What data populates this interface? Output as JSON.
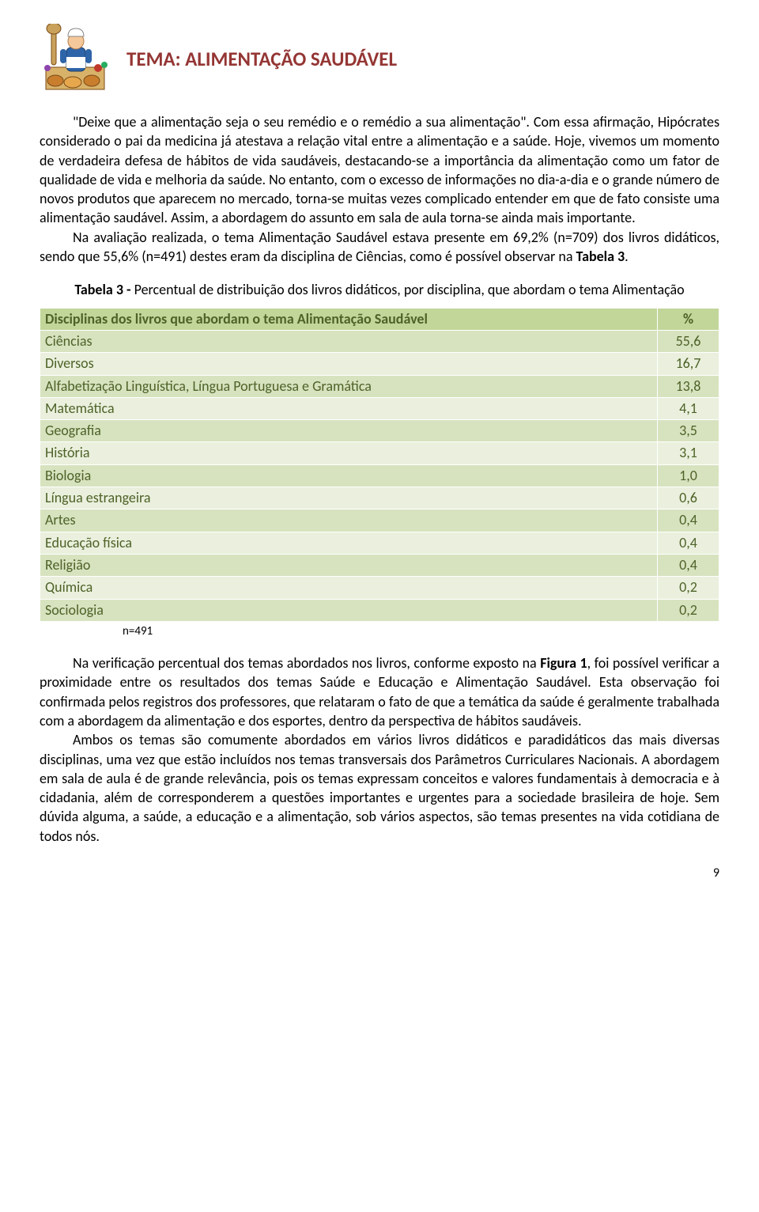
{
  "header": {
    "title": "TEMA: ALIMENTAÇÃO SAUDÁVEL"
  },
  "body": {
    "p1a": "\"Deixe que a alimentação seja o seu remédio e o remédio a sua alimentação\". Com essa afirmação, Hipócrates considerado o pai da medicina já atestava a relação vital entre a alimentação e a saúde. Hoje, vivemos um momento de verdadeira defesa de hábitos de vida saudáveis, destacando-se a importância da alimentação como um fator de qualidade de vida e melhoria da saúde. No entanto, com o excesso de informações no dia-a-dia e o grande número de novos produtos que aparecem no mercado, torna-se muitas vezes complicado entender em que de fato consiste uma alimentação saudável. Assim, a abordagem do assunto em sala de aula torna-se ainda mais importante.",
    "p2a": "Na avaliação realizada, o tema Alimentação Saudável estava presente em 69,2% (n=709) dos livros didáticos, sendo que 55,6% (n=491) destes eram da disciplina de Ciências, como é possível observar na ",
    "p2b": "Tabela 3",
    "p2c": ".",
    "p3a": "Na verificação percentual dos temas abordados nos livros, conforme exposto na ",
    "p3b": "Figura 1",
    "p3c": ", foi possível verificar a proximidade entre os resultados dos temas Saúde e Educação e Alimentação Saudável. Esta observação foi confirmada pelos registros dos professores, que relataram o fato de que a temática da saúde é geralmente trabalhada com a abordagem da alimentação e dos esportes, dentro da perspectiva de hábitos saudáveis.",
    "p4": "Ambos os temas são comumente abordados em vários livros didáticos e paradidáticos das mais diversas disciplinas, uma vez que estão incluídos nos temas transversais dos Parâmetros Curriculares Nacionais. A abordagem em sala de aula é de grande relevância, pois os temas expressam conceitos e valores fundamentais à democracia e à cidadania, além de corresponderem a questões importantes e urgentes para a sociedade brasileira de hoje. Sem dúvida alguma, a saúde, a educação e a alimentação, sob vários aspectos, são temas presentes na vida cotidiana de todos nós."
  },
  "table": {
    "caption_prefix": "Tabela 3 - ",
    "caption_rest": "Percentual de distribuição dos livros didáticos, por disciplina, que abordam o tema Alimentação",
    "header_label": "Disciplinas dos livros que abordam o tema Alimentação Saudável",
    "header_pct": "%",
    "rows": [
      {
        "label": "Ciências",
        "pct": "55,6"
      },
      {
        "label": "Diversos",
        "pct": "16,7"
      },
      {
        "label": "Alfabetização Linguística, Língua Portuguesa e Gramática",
        "pct": "13,8"
      },
      {
        "label": "Matemática",
        "pct": "4,1"
      },
      {
        "label": "Geografia",
        "pct": "3,5"
      },
      {
        "label": "História",
        "pct": "3,1"
      },
      {
        "label": "Biologia",
        "pct": "1,0"
      },
      {
        "label": "Língua estrangeira",
        "pct": "0,6"
      },
      {
        "label": "Artes",
        "pct": "0,4"
      },
      {
        "label": "Educação física",
        "pct": "0,4"
      },
      {
        "label": "Religião",
        "pct": "0,4"
      },
      {
        "label": "Química",
        "pct": "0,2"
      },
      {
        "label": "Sociologia",
        "pct": "0,2"
      }
    ],
    "footnote": "n=491"
  },
  "page_number": "9",
  "colors": {
    "title": "#943634",
    "table_header_bg": "#c2d69a",
    "table_row_bg": "#d7e3bf",
    "table_row_alt_bg": "#eaf0dd",
    "table_text": "#4e6228"
  }
}
